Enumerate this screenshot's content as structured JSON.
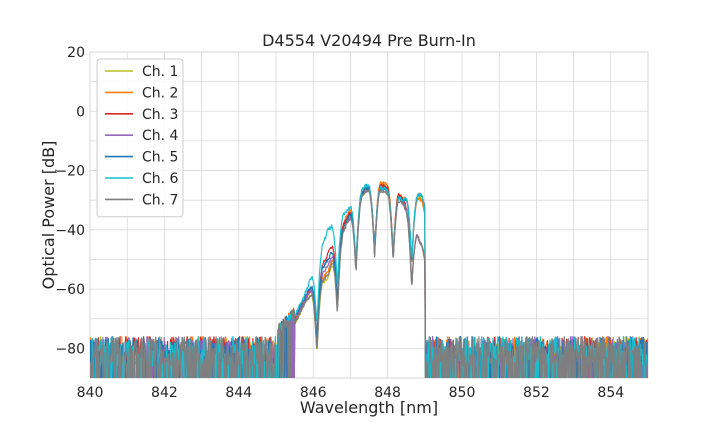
{
  "chart_data": {
    "type": "line",
    "title": "D4554 V20494 Pre Burn-In",
    "xlabel": "Wavelength [nm]",
    "ylabel": "Optical Power [dB]",
    "xlim": [
      840,
      855
    ],
    "ylim": [
      -90,
      20
    ],
    "xticks": [
      840,
      842,
      844,
      846,
      848,
      850,
      852,
      854
    ],
    "yticks": [
      20,
      0,
      -20,
      -40,
      -60,
      -80
    ],
    "grid": true,
    "legend_position": "top-left",
    "noise_floor_db": -80,
    "series": [
      {
        "name": "Ch. 1",
        "color": "#bcbd22",
        "peaks": [
          [
            845.8,
            -64
          ],
          [
            846.4,
            -56
          ],
          [
            846.9,
            -36
          ],
          [
            847.4,
            -27
          ],
          [
            847.9,
            -25
          ],
          [
            848.4,
            -30
          ],
          [
            848.9,
            -29
          ]
        ]
      },
      {
        "name": "Ch. 2",
        "color": "#ff7f0e",
        "peaks": [
          [
            845.8,
            -63
          ],
          [
            846.4,
            -54
          ],
          [
            846.9,
            -35
          ],
          [
            847.4,
            -26
          ],
          [
            847.9,
            -24
          ],
          [
            848.4,
            -29
          ],
          [
            848.9,
            -30
          ]
        ]
      },
      {
        "name": "Ch. 3",
        "color": "#d62728",
        "peaks": [
          [
            845.8,
            -63
          ],
          [
            846.4,
            -48
          ],
          [
            846.9,
            -36
          ],
          [
            847.4,
            -26
          ],
          [
            847.9,
            -25
          ],
          [
            848.4,
            -29
          ],
          [
            848.9,
            -45
          ]
        ]
      },
      {
        "name": "Ch. 4",
        "color": "#9467bd",
        "peaks": [
          [
            845.8,
            -63
          ],
          [
            846.4,
            -52
          ],
          [
            846.9,
            -38
          ],
          [
            847.4,
            -27
          ],
          [
            847.9,
            -26
          ],
          [
            848.4,
            -30
          ],
          [
            848.9,
            -45
          ]
        ]
      },
      {
        "name": "Ch. 5",
        "color": "#1f77b4",
        "peaks": [
          [
            845.8,
            -62
          ],
          [
            846.4,
            -50
          ],
          [
            846.9,
            -37
          ],
          [
            847.4,
            -26
          ],
          [
            847.9,
            -26
          ],
          [
            848.4,
            -30
          ],
          [
            848.9,
            -28
          ]
        ]
      },
      {
        "name": "Ch. 6",
        "color": "#17becf",
        "peaks": [
          [
            845.8,
            -61
          ],
          [
            846.4,
            -40
          ],
          [
            846.9,
            -34
          ],
          [
            847.4,
            -25
          ],
          [
            847.9,
            -26
          ],
          [
            848.4,
            -30
          ],
          [
            848.9,
            -28
          ]
        ]
      },
      {
        "name": "Ch. 7",
        "color": "#7f7f7f",
        "peaks": [
          [
            845.8,
            -64
          ],
          [
            846.4,
            -55
          ],
          [
            846.9,
            -38
          ],
          [
            847.4,
            -27
          ],
          [
            847.9,
            -27
          ],
          [
            848.4,
            -31
          ],
          [
            848.9,
            -45
          ]
        ]
      }
    ]
  }
}
